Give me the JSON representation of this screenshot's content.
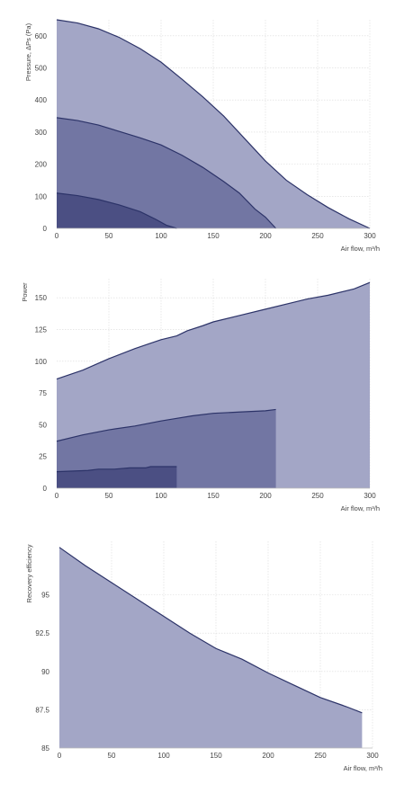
{
  "chart_data": [
    {
      "type": "area",
      "xlabel": "Air flow, m³/h",
      "ylabel": "Pressure, ΔPs (Pa)",
      "xlim": [
        0,
        300
      ],
      "ylim": [
        0,
        650
      ],
      "xticks": [
        0,
        50,
        100,
        150,
        200,
        250,
        300
      ],
      "yticks": [
        0,
        100,
        200,
        300,
        400,
        500,
        600
      ],
      "grid": true,
      "series": [
        {
          "x": [
            0,
            20,
            40,
            60,
            80,
            100,
            120,
            140,
            160,
            180,
            200,
            220,
            240,
            260,
            280,
            300
          ],
          "y": [
            650,
            640,
            622,
            595,
            560,
            518,
            465,
            410,
            350,
            280,
            210,
            150,
            105,
            65,
            30,
            0
          ],
          "color": "#a3a6c6"
        },
        {
          "x": [
            0,
            20,
            40,
            60,
            80,
            100,
            120,
            140,
            160,
            175,
            190,
            200,
            210
          ],
          "y": [
            345,
            336,
            322,
            302,
            282,
            260,
            228,
            190,
            146,
            110,
            60,
            35,
            0
          ],
          "color": "#7276a3"
        },
        {
          "x": [
            0,
            20,
            40,
            60,
            80,
            95,
            105,
            115
          ],
          "y": [
            110,
            102,
            90,
            73,
            52,
            28,
            10,
            0
          ],
          "color": "#4b4f83"
        }
      ]
    },
    {
      "type": "area",
      "xlabel": "Air flow, m³/h",
      "ylabel": "Power",
      "xlim": [
        0,
        300
      ],
      "ylim": [
        0,
        165
      ],
      "xticks": [
        0,
        50,
        100,
        150,
        200,
        250,
        300
      ],
      "yticks": [
        0,
        25,
        50,
        75,
        100,
        125,
        150
      ],
      "grid": true,
      "series": [
        {
          "x": [
            0,
            25,
            50,
            75,
            100,
            115,
            125,
            140,
            150,
            175,
            200,
            225,
            240,
            260,
            285,
            300
          ],
          "y": [
            86,
            93,
            102,
            110,
            117,
            120,
            124,
            128,
            131,
            136,
            141,
            146,
            149,
            152,
            157,
            162
          ],
          "color": "#a3a6c6"
        },
        {
          "x": [
            0,
            25,
            50,
            75,
            100,
            115,
            130,
            150,
            175,
            200,
            210
          ],
          "y": [
            37,
            42,
            46,
            49,
            53,
            55,
            57,
            59,
            60,
            61,
            62
          ],
          "color": "#7276a3"
        },
        {
          "x": [
            0,
            30,
            40,
            55,
            70,
            85,
            90,
            100,
            115
          ],
          "y": [
            13,
            14,
            15,
            15,
            16,
            16,
            17,
            17,
            17
          ],
          "color": "#4b4f83"
        }
      ]
    },
    {
      "type": "area",
      "xlabel": "Air flow, m³/h",
      "ylabel": "Recovery efficiency",
      "xlim": [
        0,
        300
      ],
      "ylim": [
        85,
        98.5
      ],
      "xticks": [
        0,
        50,
        100,
        150,
        200,
        250,
        300
      ],
      "yticks": [
        85,
        87.5,
        90,
        92.5,
        95
      ],
      "ytick_labels": [
        "85",
        "87.5",
        "90",
        "92.5",
        "95"
      ],
      "grid": true,
      "series": [
        {
          "x": [
            0,
            25,
            50,
            75,
            100,
            125,
            150,
            175,
            200,
            225,
            250,
            275,
            290
          ],
          "y": [
            98.1,
            96.9,
            95.8,
            94.7,
            93.6,
            92.5,
            91.5,
            90.8,
            89.9,
            89.1,
            88.3,
            87.7,
            87.3
          ],
          "color": "#a3a6c6"
        }
      ]
    }
  ]
}
